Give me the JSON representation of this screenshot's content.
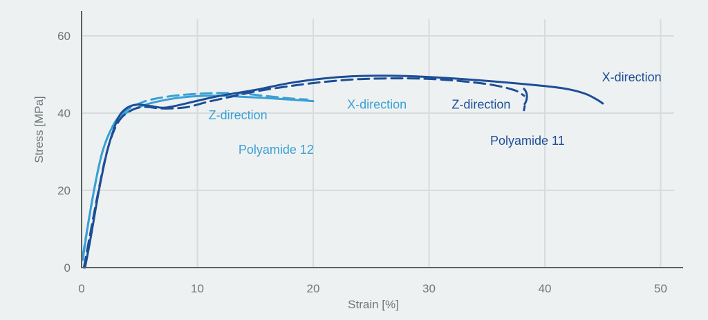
{
  "chart_data": {
    "type": "line",
    "title": "",
    "xlabel": "Strain [%]",
    "ylabel": "Stress [MPa]",
    "xlim": [
      0,
      52
    ],
    "ylim": [
      0,
      67
    ],
    "xticks": [
      0,
      10,
      20,
      30,
      40,
      50
    ],
    "yticks": [
      0,
      20,
      40,
      60
    ],
    "grid": true,
    "series": [
      {
        "name": "Polyamide 12 X-direction",
        "material": "Polyamide 12",
        "direction": "X-direction",
        "color": "#3aa0d4",
        "dash": "solid",
        "points": [
          [
            0.1,
            2
          ],
          [
            0.6,
            12
          ],
          [
            1.2,
            22
          ],
          [
            1.8,
            30
          ],
          [
            2.5,
            35.5
          ],
          [
            3.2,
            38.5
          ],
          [
            4,
            40.3
          ],
          [
            5,
            41.6
          ],
          [
            6,
            42.6
          ],
          [
            8,
            43.8
          ],
          [
            10,
            44.4
          ],
          [
            12,
            44.5
          ],
          [
            14,
            44.2
          ],
          [
            16,
            43.9
          ],
          [
            18,
            43.5
          ],
          [
            20,
            43.1
          ]
        ]
      },
      {
        "name": "Polyamide 12 Z-direction",
        "material": "Polyamide 12",
        "direction": "Z-direction",
        "color": "#3aa0d4",
        "dash": "dashed",
        "points": [
          [
            0.1,
            3
          ],
          [
            0.6,
            12
          ],
          [
            1.2,
            22
          ],
          [
            1.8,
            30
          ],
          [
            2.5,
            35.5
          ],
          [
            3.2,
            39
          ],
          [
            4,
            41
          ],
          [
            5,
            42.5
          ],
          [
            6,
            43.5
          ],
          [
            8,
            44.5
          ],
          [
            10,
            45
          ],
          [
            12,
            45.2
          ],
          [
            14,
            45
          ],
          [
            16,
            44.4
          ],
          [
            18,
            43.8
          ],
          [
            19.5,
            43.5
          ]
        ]
      },
      {
        "name": "Polyamide 11 X-direction",
        "material": "Polyamide 11",
        "direction": "X-direction",
        "color": "#1c4e96",
        "dash": "solid",
        "points": [
          [
            0.3,
            0
          ],
          [
            0.8,
            8
          ],
          [
            1.5,
            20
          ],
          [
            2.2,
            30
          ],
          [
            2.8,
            36
          ],
          [
            3.3,
            39.5
          ],
          [
            4,
            41.5
          ],
          [
            4.8,
            42.2
          ],
          [
            6,
            41.8
          ],
          [
            7,
            41.4
          ],
          [
            8,
            41.8
          ],
          [
            10,
            43.2
          ],
          [
            12,
            44.5
          ],
          [
            15,
            46
          ],
          [
            18,
            47.8
          ],
          [
            21,
            49
          ],
          [
            24,
            49.6
          ],
          [
            28,
            49.6
          ],
          [
            32,
            49
          ],
          [
            36,
            48.1
          ],
          [
            40,
            47
          ],
          [
            42,
            46.2
          ],
          [
            43.5,
            45
          ],
          [
            44.5,
            43.5
          ],
          [
            45,
            42.5
          ]
        ]
      },
      {
        "name": "Polyamide 11 Z-direction",
        "material": "Polyamide 11",
        "direction": "Z-direction",
        "color": "#1c4e96",
        "dash": "dashed",
        "points": [
          [
            0.2,
            0
          ],
          [
            0.7,
            8
          ],
          [
            1.4,
            19
          ],
          [
            2.1,
            29
          ],
          [
            2.8,
            35.5
          ],
          [
            3.5,
            39
          ],
          [
            4.5,
            41
          ],
          [
            5.5,
            41.6
          ],
          [
            7,
            41.2
          ],
          [
            9,
            41.5
          ],
          [
            11,
            43
          ],
          [
            13,
            44.3
          ],
          [
            15,
            45.6
          ],
          [
            18,
            47
          ],
          [
            21,
            48.1
          ],
          [
            24,
            48.8
          ],
          [
            28,
            49
          ],
          [
            31,
            48.7
          ],
          [
            34,
            47.9
          ],
          [
            36,
            47
          ],
          [
            37.5,
            45.8
          ],
          [
            38.2,
            44.5
          ]
        ]
      }
    ],
    "annotations": [
      {
        "text": "X-direction",
        "color": "#1c4e96",
        "x": 47.5,
        "y": 48.2
      },
      {
        "text": "Z-direction",
        "color": "#1c4e96",
        "x": 34.5,
        "y": 41.2
      },
      {
        "text": "Polyamide 11",
        "color": "#1c4e96",
        "x": 38.5,
        "y": 31.8
      },
      {
        "text": "X-direction",
        "color": "#3aa0d4",
        "x": 25.5,
        "y": 41.2
      },
      {
        "text": "Z-direction",
        "color": "#3aa0d4",
        "x": 13.5,
        "y": 38.4
      },
      {
        "text": "Polyamide 12",
        "color": "#3aa0d4",
        "x": 16.8,
        "y": 29.5
      }
    ]
  },
  "colors": {
    "background": "#eef1f2",
    "grid": "#d7dbdd",
    "axis": "#5b6063"
  }
}
